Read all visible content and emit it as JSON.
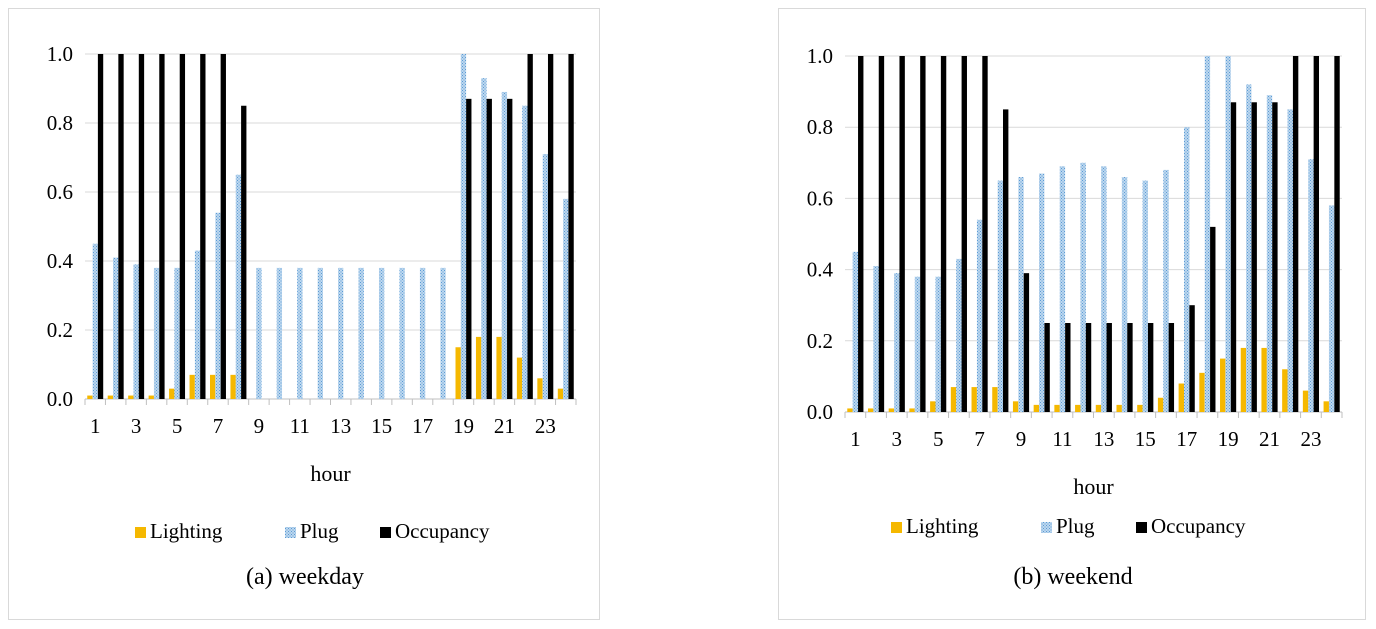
{
  "colors": {
    "lighting": "#f5b800",
    "plug": "#bdd7ee",
    "plug_pattern_dot": "#5b9bd5",
    "occupancy": "#000000",
    "grid": "#d9d9d9"
  },
  "chart_data": [
    {
      "type": "bar",
      "caption": "(a) weekday",
      "xlabel": "hour",
      "ylabel": "",
      "ylim": [
        0,
        1.0
      ],
      "yticks": [
        "0.0",
        "0.2",
        "0.4",
        "0.6",
        "0.8",
        "1.0"
      ],
      "xtick_labels": [
        "1",
        "3",
        "5",
        "7",
        "9",
        "11",
        "13",
        "15",
        "17",
        "19",
        "21",
        "23"
      ],
      "categories": [
        1,
        2,
        3,
        4,
        5,
        6,
        7,
        8,
        9,
        10,
        11,
        12,
        13,
        14,
        15,
        16,
        17,
        18,
        19,
        20,
        21,
        22,
        23,
        24
      ],
      "grid": true,
      "legend_position": "bottom",
      "series": [
        {
          "name": "Lighting",
          "values": [
            0.01,
            0.01,
            0.01,
            0.01,
            0.03,
            0.07,
            0.07,
            0.07,
            0,
            0,
            0,
            0,
            0,
            0,
            0,
            0,
            0,
            0,
            0.15,
            0.18,
            0.18,
            0.12,
            0.06,
            0.03
          ]
        },
        {
          "name": "Plug",
          "values": [
            0.45,
            0.41,
            0.39,
            0.38,
            0.38,
            0.43,
            0.54,
            0.65,
            0.38,
            0.38,
            0.38,
            0.38,
            0.38,
            0.38,
            0.38,
            0.38,
            0.38,
            0.38,
            1.0,
            0.93,
            0.89,
            0.85,
            0.71,
            0.58
          ]
        },
        {
          "name": "Occupancy",
          "values": [
            1.0,
            1.0,
            1.0,
            1.0,
            1.0,
            1.0,
            1.0,
            0.85,
            0,
            0,
            0,
            0,
            0,
            0,
            0,
            0,
            0,
            0,
            0.87,
            0.87,
            0.87,
            1.0,
            1.0,
            1.0
          ]
        }
      ]
    },
    {
      "type": "bar",
      "caption": "(b) weekend",
      "xlabel": "hour",
      "ylabel": "",
      "ylim": [
        0,
        1.0
      ],
      "yticks": [
        "0.0",
        "0.2",
        "0.4",
        "0.6",
        "0.8",
        "1.0"
      ],
      "xtick_labels": [
        "1",
        "3",
        "5",
        "7",
        "9",
        "11",
        "13",
        "15",
        "17",
        "19",
        "21",
        "23"
      ],
      "categories": [
        1,
        2,
        3,
        4,
        5,
        6,
        7,
        8,
        9,
        10,
        11,
        12,
        13,
        14,
        15,
        16,
        17,
        18,
        19,
        20,
        21,
        22,
        23,
        24
      ],
      "grid": true,
      "legend_position": "bottom",
      "series": [
        {
          "name": "Lighting",
          "values": [
            0.01,
            0.01,
            0.01,
            0.01,
            0.03,
            0.07,
            0.07,
            0.07,
            0.03,
            0.02,
            0.02,
            0.02,
            0.02,
            0.02,
            0.02,
            0.04,
            0.08,
            0.11,
            0.15,
            0.18,
            0.18,
            0.12,
            0.06,
            0.03
          ]
        },
        {
          "name": "Plug",
          "values": [
            0.45,
            0.41,
            0.39,
            0.38,
            0.38,
            0.43,
            0.54,
            0.65,
            0.66,
            0.67,
            0.69,
            0.7,
            0.69,
            0.66,
            0.65,
            0.68,
            0.8,
            1.0,
            1.0,
            0.92,
            0.89,
            0.85,
            0.71,
            0.58
          ]
        },
        {
          "name": "Occupancy",
          "values": [
            1.0,
            1.0,
            1.0,
            1.0,
            1.0,
            1.0,
            1.0,
            0.85,
            0.39,
            0.25,
            0.25,
            0.25,
            0.25,
            0.25,
            0.25,
            0.25,
            0.3,
            0.52,
            0.87,
            0.87,
            0.87,
            1.0,
            1.0,
            1.0
          ]
        }
      ]
    }
  ]
}
